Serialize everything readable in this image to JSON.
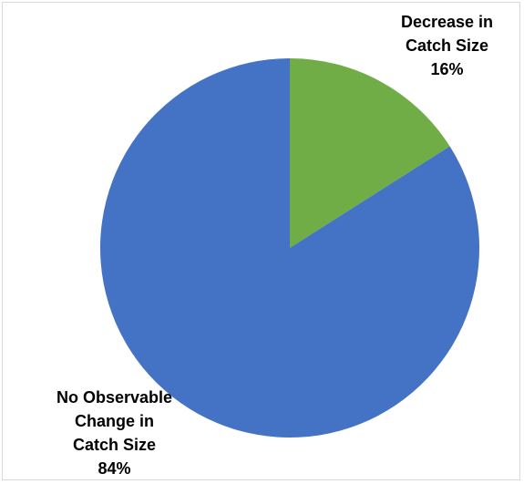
{
  "chart_data": {
    "type": "pie",
    "title": "",
    "start_angle_deg": 0,
    "direction": "clockwise",
    "slices": [
      {
        "label": "Decrease in Catch Size",
        "label_lines": [
          "Decrease in",
          "Catch Size"
        ],
        "value": 16,
        "value_label": "16%",
        "color": "#70ad47"
      },
      {
        "label": "No Observable Change in Catch Size",
        "label_lines": [
          "No Observable",
          "Change in",
          "Catch Size"
        ],
        "value": 84,
        "value_label": "84%",
        "color": "#4472c4"
      }
    ],
    "legend": "none"
  }
}
